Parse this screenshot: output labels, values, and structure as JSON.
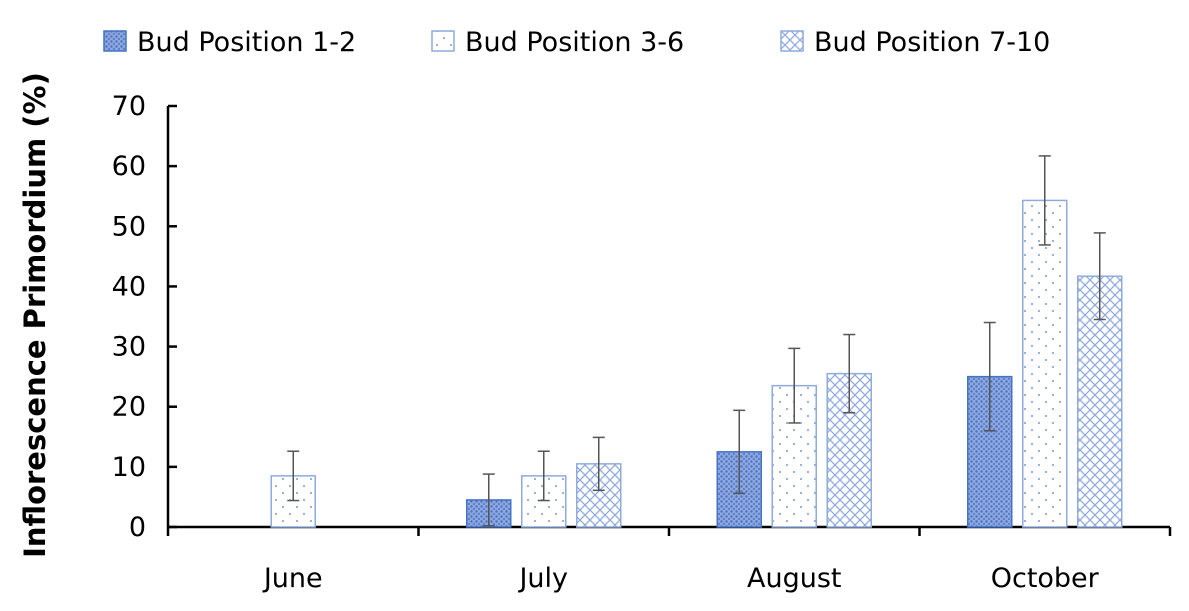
{
  "chart_data": {
    "type": "bar",
    "title": "",
    "xlabel": "",
    "ylabel": "Inflorescence Primordium (%)",
    "ylim": [
      0,
      70
    ],
    "yticks": [
      0,
      10,
      20,
      30,
      40,
      50,
      60,
      70
    ],
    "grid": false,
    "legend_position": "top",
    "categories": [
      "June",
      "July",
      "August",
      "October"
    ],
    "series": [
      {
        "name": "Bud Position 1-2",
        "pattern": "dense-dots",
        "color": "#4472c4",
        "values": [
          0,
          4.5,
          12.5,
          25
        ],
        "errors": [
          0,
          4.3,
          6.9,
          9
        ]
      },
      {
        "name": "Bud Position 3-6",
        "pattern": "sparse-dots",
        "color": "#8faadc",
        "values": [
          8.5,
          8.5,
          23.5,
          54.3
        ],
        "errors": [
          4.1,
          4.1,
          6.2,
          7.4
        ]
      },
      {
        "name": "Bud Position 7-10",
        "pattern": "crosshatch",
        "color": "#8faadc",
        "values": [
          0,
          10.5,
          25.5,
          41.7
        ],
        "errors": [
          0,
          4.4,
          6.5,
          7.2
        ]
      }
    ]
  }
}
